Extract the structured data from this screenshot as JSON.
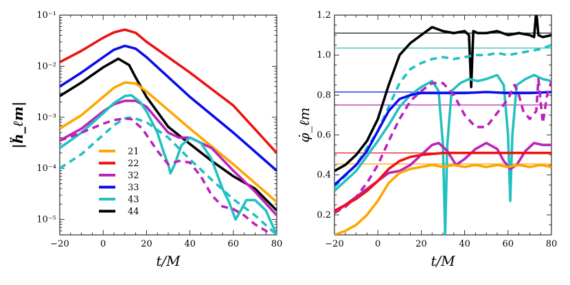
{
  "chart_data": [
    {
      "type": "line",
      "id": "left",
      "title": "",
      "xlabel": "t/M",
      "ylabel": "|ḧ_ℓm|",
      "yscale": "log",
      "xlim": [
        -20,
        80
      ],
      "ylim": [
        5e-06,
        0.1
      ],
      "xticks": [
        -20,
        0,
        20,
        40,
        60,
        80
      ],
      "xtick_labels": [
        "−20",
        "0",
        "20",
        "40",
        "60",
        "80"
      ],
      "yticks": [
        1e-05,
        0.0001,
        0.001,
        0.01,
        0.1
      ],
      "ytick_labels": [
        "10⁻⁵",
        "10⁻⁴",
        "10⁻³",
        "10⁻²",
        "10⁻¹"
      ],
      "legend": {
        "placement": "lower-left",
        "entries": [
          {
            "label": "21",
            "color": "#ffa500"
          },
          {
            "label": "22",
            "color": "#ee1111"
          },
          {
            "label": "32",
            "color": "#bb22bb"
          },
          {
            "label": "33",
            "color": "#0a0aee"
          },
          {
            "label": "43",
            "color": "#22c0c0"
          },
          {
            "label": "44",
            "color": "#000000"
          }
        ]
      },
      "series": [
        {
          "name": "22",
          "color": "#ee1111",
          "dashed": false,
          "x": [
            -20,
            -10,
            0,
            5,
            10,
            15,
            20,
            40,
            60,
            80
          ],
          "y": [
            0.012,
            0.02,
            0.036,
            0.046,
            0.052,
            0.045,
            0.03,
            0.0075,
            0.0017,
            0.0002
          ]
        },
        {
          "name": "33",
          "color": "#0a0aee",
          "dashed": false,
          "x": [
            -20,
            -10,
            0,
            5,
            10,
            15,
            20,
            40,
            60,
            80
          ],
          "y": [
            0.004,
            0.0075,
            0.015,
            0.021,
            0.025,
            0.022,
            0.015,
            0.0025,
            0.0005,
            9e-05
          ]
        },
        {
          "name": "44",
          "color": "#000000",
          "dashed": false,
          "x": [
            -20,
            -10,
            0,
            7,
            12,
            15,
            20,
            30,
            40,
            50,
            60,
            70,
            80
          ],
          "y": [
            0.0026,
            0.0048,
            0.0095,
            0.014,
            0.0105,
            0.006,
            0.0025,
            0.00065,
            0.0003,
            0.00014,
            7e-05,
            4e-05,
            1.5e-05
          ]
        },
        {
          "name": "21",
          "color": "#ffa500",
          "dashed": false,
          "x": [
            -20,
            -10,
            0,
            5,
            10,
            15,
            20,
            40,
            60,
            80
          ],
          "y": [
            0.0006,
            0.0011,
            0.0025,
            0.0038,
            0.0048,
            0.0046,
            0.0032,
            0.0006,
            0.00012,
            2.2e-05
          ]
        },
        {
          "name": "32",
          "color": "#bb22bb",
          "dashed": false,
          "x": [
            -20,
            -10,
            0,
            5,
            10,
            15,
            20,
            25,
            30,
            35,
            40,
            50,
            60,
            70,
            80
          ],
          "y": [
            0.00035,
            0.0006,
            0.0013,
            0.0018,
            0.0021,
            0.0021,
            0.0016,
            0.0009,
            0.0005,
            0.0004,
            0.0004,
            0.00025,
            9e-05,
            3.5e-05,
            1.2e-05
          ]
        },
        {
          "name": "43",
          "color": "#22c0c0",
          "dashed": false,
          "x": [
            -20,
            -10,
            0,
            5,
            10,
            13,
            17,
            20,
            25,
            28,
            30,
            31,
            33,
            36,
            40,
            45,
            50,
            55,
            58,
            61,
            63,
            66,
            70,
            75,
            80
          ],
          "y": [
            0.00025,
            0.0005,
            0.0012,
            0.0019,
            0.0026,
            0.0027,
            0.002,
            0.0013,
            0.0005,
            0.0002,
            0.00012,
            8e-05,
            0.00012,
            0.00028,
            0.0004,
            0.00032,
            0.00015,
            4e-05,
            2.2e-05,
            1e-05,
            1.4e-05,
            2.4e-05,
            2.4e-05,
            1.5e-05,
            5e-06
          ]
        },
        {
          "name": "43 (dashed)",
          "color": "#22c0c0",
          "dashed": true,
          "x": [
            -20,
            -10,
            0,
            5,
            10,
            13,
            20,
            30,
            40,
            50,
            60,
            70,
            80
          ],
          "y": [
            0.0001,
            0.00019,
            0.00045,
            0.0007,
            0.00095,
            0.001,
            0.0008,
            0.0004,
            0.00015,
            6e-05,
            2.5e-05,
            1.2e-05,
            5e-06
          ]
        },
        {
          "name": "32 (dashed)",
          "color": "#bb22bb",
          "dashed": true,
          "x": [
            -20,
            -10,
            0,
            5,
            10,
            13,
            18,
            25,
            30,
            35,
            40,
            45,
            50,
            55,
            60,
            65,
            70,
            75,
            80
          ],
          "y": [
            0.00035,
            0.0005,
            0.00075,
            0.00088,
            0.00095,
            0.00092,
            0.0006,
            0.00022,
            0.00012,
            0.00014,
            0.00013,
            7e-05,
            3e-05,
            1.8e-05,
            1.6e-05,
            1.2e-05,
            8e-06,
            6e-06,
            4e-06
          ]
        }
      ]
    },
    {
      "type": "line",
      "id": "right",
      "title": "",
      "xlabel": "t/M",
      "ylabel": "φ̇_ℓm",
      "yscale": "linear",
      "xlim": [
        -20,
        80
      ],
      "ylim": [
        0.1,
        1.2
      ],
      "xticks": [
        -20,
        0,
        20,
        40,
        60,
        80
      ],
      "xtick_labels": [
        "−20",
        "0",
        "20",
        "40",
        "60",
        "80"
      ],
      "yticks": [
        0.2,
        0.4,
        0.6,
        0.8,
        1.0,
        1.2
      ],
      "ytick_labels": [
        "0.2",
        "0.4",
        "0.6",
        "0.8",
        "1.0",
        "1.2"
      ],
      "reference_lines": [
        {
          "mode": "44",
          "color": "#000000",
          "y": 1.11
        },
        {
          "mode": "43",
          "color": "#22c0c0",
          "y": 1.035
        },
        {
          "mode": "33",
          "color": "#0a0aee",
          "y": 0.815
        },
        {
          "mode": "32",
          "color": "#bb22bb",
          "y": 0.75
        },
        {
          "mode": "22",
          "color": "#ee1111",
          "y": 0.51
        },
        {
          "mode": "21",
          "color": "#ffa500",
          "y": 0.455
        }
      ],
      "series": [
        {
          "name": "44",
          "color": "#000000",
          "dashed": false,
          "x": [
            -20,
            -15,
            -10,
            -5,
            0,
            5,
            10,
            15,
            20,
            25,
            30,
            35,
            40,
            42,
            43,
            44,
            46,
            50,
            55,
            60,
            65,
            70,
            72,
            73,
            74,
            76,
            80
          ],
          "y": [
            0.42,
            0.45,
            0.5,
            0.57,
            0.68,
            0.85,
            1.0,
            1.06,
            1.1,
            1.14,
            1.12,
            1.11,
            1.12,
            1.1,
            0.84,
            1.12,
            1.11,
            1.11,
            1.12,
            1.1,
            1.11,
            1.1,
            1.09,
            1.22,
            1.1,
            1.09,
            1.1
          ]
        },
        {
          "name": "43 (dashed)",
          "color": "#22c0c0",
          "dashed": true,
          "x": [
            -20,
            -10,
            0,
            5,
            10,
            15,
            20,
            25,
            30,
            35,
            40,
            45,
            50,
            55,
            60,
            65,
            70,
            75,
            80
          ],
          "y": [
            0.34,
            0.45,
            0.62,
            0.74,
            0.86,
            0.93,
            0.96,
            0.98,
            0.99,
            0.98,
            0.99,
            1.0,
            1.0,
            1.01,
            1.0,
            1.01,
            1.02,
            1.03,
            1.05
          ]
        },
        {
          "name": "43",
          "color": "#22c0c0",
          "dashed": false,
          "x": [
            -20,
            -10,
            0,
            5,
            10,
            15,
            20,
            25,
            28,
            30,
            31,
            32,
            34,
            38,
            42,
            46,
            50,
            55,
            58,
            60,
            61,
            62,
            64,
            68,
            72,
            76,
            80
          ],
          "y": [
            0.32,
            0.42,
            0.57,
            0.65,
            0.74,
            0.8,
            0.84,
            0.87,
            0.82,
            0.55,
            0.1,
            0.55,
            0.82,
            0.86,
            0.88,
            0.87,
            0.88,
            0.9,
            0.85,
            0.6,
            0.27,
            0.6,
            0.85,
            0.88,
            0.9,
            0.88,
            0.87
          ]
        },
        {
          "name": "33",
          "color": "#0a0aee",
          "dashed": false,
          "x": [
            -20,
            -15,
            -10,
            -5,
            0,
            5,
            10,
            15,
            20,
            30,
            40,
            50,
            60,
            70,
            80
          ],
          "y": [
            0.35,
            0.4,
            0.45,
            0.52,
            0.62,
            0.72,
            0.78,
            0.8,
            0.81,
            0.81,
            0.81,
            0.815,
            0.81,
            0.81,
            0.815
          ]
        },
        {
          "name": "32 (dashed)",
          "color": "#bb22bb",
          "dashed": true,
          "x": [
            -20,
            -15,
            -10,
            -5,
            0,
            5,
            10,
            15,
            20,
            25,
            30,
            35,
            40,
            45,
            50,
            55,
            60,
            63,
            65,
            67,
            70,
            73,
            74,
            76,
            78,
            80
          ],
          "y": [
            0.21,
            0.24,
            0.29,
            0.36,
            0.45,
            0.57,
            0.68,
            0.77,
            0.82,
            0.86,
            0.86,
            0.8,
            0.7,
            0.64,
            0.64,
            0.71,
            0.78,
            0.85,
            0.8,
            0.72,
            0.68,
            0.72,
            0.88,
            0.66,
            0.8,
            0.87
          ]
        },
        {
          "name": "32",
          "color": "#bb22bb",
          "dashed": false,
          "x": [
            -20,
            -15,
            -10,
            -5,
            0,
            5,
            10,
            15,
            20,
            25,
            28,
            32,
            36,
            40,
            45,
            50,
            55,
            58,
            61,
            64,
            68,
            72,
            76,
            80
          ],
          "y": [
            0.21,
            0.25,
            0.29,
            0.33,
            0.37,
            0.41,
            0.42,
            0.45,
            0.5,
            0.55,
            0.56,
            0.52,
            0.45,
            0.48,
            0.53,
            0.56,
            0.53,
            0.47,
            0.43,
            0.45,
            0.52,
            0.56,
            0.55,
            0.55
          ]
        },
        {
          "name": "22",
          "color": "#ee1111",
          "dashed": false,
          "x": [
            -20,
            -15,
            -10,
            -5,
            0,
            5,
            10,
            15,
            20,
            25,
            30,
            40,
            50,
            60,
            70,
            80
          ],
          "y": [
            0.22,
            0.25,
            0.28,
            0.32,
            0.37,
            0.43,
            0.47,
            0.49,
            0.5,
            0.505,
            0.51,
            0.51,
            0.51,
            0.51,
            0.51,
            0.51
          ]
        },
        {
          "name": "21",
          "color": "#ffa500",
          "dashed": false,
          "x": [
            -20,
            -15,
            -10,
            -5,
            0,
            5,
            10,
            15,
            20,
            25,
            30,
            35,
            40,
            45,
            50,
            55,
            60,
            65,
            70,
            75,
            80
          ],
          "y": [
            0.1,
            0.12,
            0.15,
            0.2,
            0.27,
            0.36,
            0.41,
            0.43,
            0.44,
            0.45,
            0.44,
            0.45,
            0.44,
            0.45,
            0.44,
            0.45,
            0.44,
            0.45,
            0.44,
            0.45,
            0.44
          ]
        }
      ]
    }
  ]
}
